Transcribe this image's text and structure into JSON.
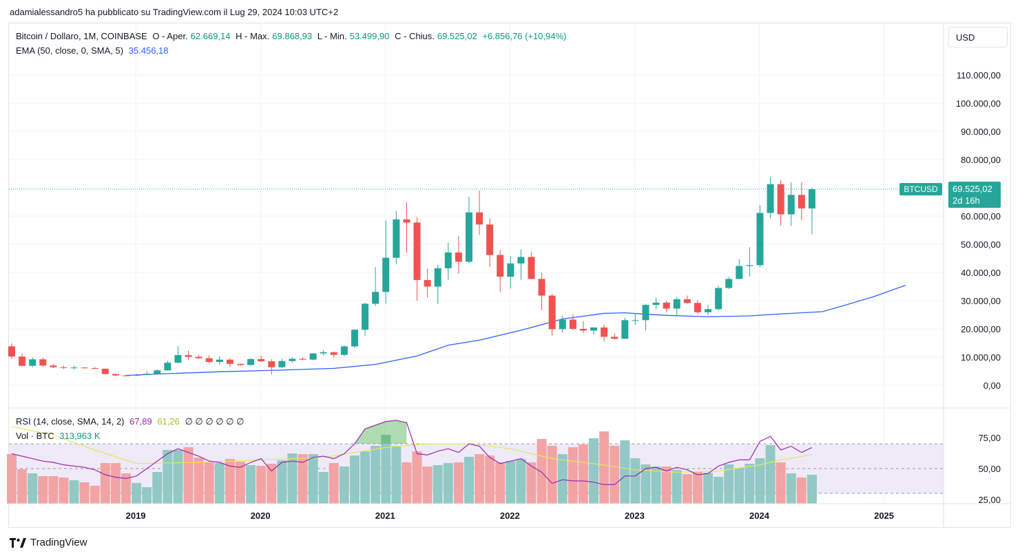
{
  "publish_line": "adamialessandro5 ha pubblicato su TradingView.com il Lug 29, 2024 10:03 UTC+2",
  "legend": {
    "symbol": "Bitcoin / Dollaro, 1M, COINBASE",
    "o_label": "O - Aper.",
    "o_val": "62.669,14",
    "h_label": "H - Max.",
    "h_val": "69.868,93",
    "l_label": "L - Min.",
    "l_val": "53.499,90",
    "c_label": "C - Chius.",
    "c_val": "69.525,02",
    "change": "+6.856,76 (+10,94%)",
    "ema_label": "EMA (50, close, 0, SMA, 5)",
    "ema_val": "35.456,18",
    "rsi_label": "RSI (14, close, SMA, 14, 2)",
    "rsi_val": "67,89",
    "rsi_ma_val": "61,26",
    "rsi_extra": "∅ ∅ ∅ ∅ ∅ ∅",
    "vol_label": "Vol · BTC",
    "vol_val": "313,963 K"
  },
  "currency_button": "USD",
  "price_tag": {
    "symbol": "BTCUSD",
    "value": "69.525,02",
    "countdown": "2d 16h"
  },
  "brand": "TradingView",
  "colors": {
    "up": "#26a69a",
    "down": "#ef5350",
    "ema": "#2962ff",
    "rsi": "#9c27b0",
    "rsi_ma": "#e6e65c",
    "vol_up": "#92c9c4",
    "vol_down": "#f2a4a4",
    "rsi_band": "#efeaf8"
  },
  "chart_data": {
    "type": "candlestick",
    "interval": "1M",
    "x_ticks": [
      "2019",
      "2020",
      "2021",
      "2022",
      "2023",
      "2024",
      "2025"
    ],
    "y_ticks": [
      "0,00",
      "10.000,00",
      "20.000,00",
      "30.000,00",
      "40.000,00",
      "50.000,00",
      "60.000,00",
      "70.000,00",
      "80.000,00",
      "90.000,00",
      "100.000,00",
      "110.000,00"
    ],
    "y_range": [
      -3000,
      118000
    ],
    "first_month": "2018-01",
    "candles": [
      [
        13800,
        14900,
        9400,
        10200
      ],
      [
        10200,
        11300,
        6800,
        6900
      ],
      [
        6900,
        9900,
        6400,
        9200
      ],
      [
        9200,
        9900,
        6500,
        7000
      ],
      [
        7000,
        7700,
        6100,
        6400
      ],
      [
        6400,
        7000,
        5800,
        6200
      ],
      [
        6200,
        7000,
        5700,
        6300
      ],
      [
        6300,
        6400,
        5900,
        6100
      ],
      [
        6100,
        6500,
        5800,
        5900
      ],
      [
        5900,
        5900,
        3900,
        4000
      ],
      [
        4000,
        4200,
        3200,
        3500
      ],
      [
        3500,
        3800,
        3200,
        3400
      ],
      [
        3400,
        4100,
        3300,
        3700
      ],
      [
        3700,
        5100,
        3600,
        4100
      ],
      [
        4100,
        5700,
        4000,
        5300
      ],
      [
        5300,
        8700,
        5200,
        8000
      ],
      [
        8000,
        13900,
        7800,
        10700
      ],
      [
        10700,
        12300,
        9100,
        10100
      ],
      [
        10100,
        10900,
        9300,
        9600
      ],
      [
        9600,
        10600,
        7800,
        8300
      ],
      [
        8300,
        10300,
        7300,
        9100
      ],
      [
        9100,
        9600,
        6500,
        7600
      ],
      [
        7600,
        7700,
        6900,
        7200
      ],
      [
        7200,
        9600,
        6900,
        9300
      ],
      [
        9300,
        10500,
        8300,
        8500
      ],
      [
        8500,
        9200,
        3800,
        6400
      ],
      [
        6400,
        9500,
        6100,
        8600
      ],
      [
        8600,
        9900,
        8100,
        9400
      ],
      [
        9400,
        10000,
        8900,
        9100
      ],
      [
        9100,
        11400,
        8900,
        11300
      ],
      [
        11300,
        12500,
        10600,
        11700
      ],
      [
        11700,
        12000,
        9800,
        10800
      ],
      [
        10800,
        14100,
        10400,
        13800
      ],
      [
        13800,
        19900,
        13200,
        19700
      ],
      [
        19700,
        29300,
        17500,
        28900
      ],
      [
        28900,
        41900,
        28100,
        33100
      ],
      [
        33100,
        58400,
        29000,
        45200
      ],
      [
        45200,
        61800,
        43000,
        58800
      ],
      [
        58800,
        64900,
        47000,
        57700
      ],
      [
        57700,
        59600,
        30000,
        37300
      ],
      [
        37300,
        41300,
        31100,
        35000
      ],
      [
        35000,
        42600,
        28800,
        41500
      ],
      [
        41500,
        50500,
        37300,
        47100
      ],
      [
        47100,
        52900,
        39600,
        43800
      ],
      [
        43800,
        66900,
        43300,
        61300
      ],
      [
        61300,
        69000,
        53300,
        57000
      ],
      [
        57000,
        59200,
        42000,
        46200
      ],
      [
        46200,
        48000,
        33000,
        38500
      ],
      [
        38500,
        45800,
        34300,
        43200
      ],
      [
        43200,
        48200,
        37400,
        45500
      ],
      [
        45500,
        47400,
        37700,
        37700
      ],
      [
        37700,
        40000,
        26700,
        31800
      ],
      [
        31800,
        32400,
        17600,
        19900
      ],
      [
        19900,
        24700,
        18800,
        23300
      ],
      [
        23300,
        25200,
        19500,
        20000
      ],
      [
        20000,
        22700,
        18500,
        19400
      ],
      [
        19400,
        20400,
        18100,
        20500
      ],
      [
        20500,
        21500,
        15500,
        17200
      ],
      [
        17200,
        18400,
        16300,
        16500
      ],
      [
        16500,
        23900,
        16500,
        23100
      ],
      [
        23100,
        25300,
        21400,
        23100
      ],
      [
        23100,
        28900,
        19500,
        28500
      ],
      [
        28500,
        31000,
        26900,
        29300
      ],
      [
        29300,
        30000,
        25800,
        27200
      ],
      [
        27200,
        31400,
        24800,
        30500
      ],
      [
        30500,
        31800,
        28900,
        29200
      ],
      [
        29200,
        30200,
        25400,
        25900
      ],
      [
        25900,
        28600,
        24900,
        27000
      ],
      [
        27000,
        35200,
        26600,
        34500
      ],
      [
        34500,
        38400,
        34100,
        37700
      ],
      [
        37700,
        44700,
        37600,
        42300
      ],
      [
        42300,
        48900,
        38600,
        42600
      ],
      [
        42600,
        63900,
        41900,
        61100
      ],
      [
        61100,
        73800,
        59300,
        71300
      ],
      [
        71300,
        72800,
        56600,
        60600
      ],
      [
        60600,
        71900,
        56500,
        67500
      ],
      [
        67500,
        72000,
        58600,
        62700
      ],
      [
        62700,
        69900,
        53500,
        69500
      ]
    ],
    "ema": [
      [
        11,
        3500
      ],
      [
        14,
        4000
      ],
      [
        20,
        4800
      ],
      [
        26,
        5400
      ],
      [
        31,
        6000
      ],
      [
        35,
        7400
      ],
      [
        39,
        10400
      ],
      [
        42,
        14200
      ],
      [
        45,
        16000
      ],
      [
        49,
        19500
      ],
      [
        53,
        23500
      ],
      [
        57,
        25500
      ],
      [
        59,
        25700
      ],
      [
        61,
        25200
      ],
      [
        63,
        24800
      ],
      [
        67,
        24300
      ],
      [
        71,
        24600
      ],
      [
        74,
        25300
      ],
      [
        78,
        26100
      ],
      [
        80,
        28200
      ],
      [
        83,
        31500
      ],
      [
        86,
        35456
      ]
    ],
    "rsi": [
      [
        0,
        62
      ],
      [
        1,
        60
      ],
      [
        2,
        58
      ],
      [
        3,
        56
      ],
      [
        4,
        55
      ],
      [
        5,
        53
      ],
      [
        6,
        52
      ],
      [
        7,
        51
      ],
      [
        8,
        49
      ],
      [
        9,
        45
      ],
      [
        10,
        43
      ],
      [
        11,
        42
      ],
      [
        12,
        44
      ],
      [
        13,
        50
      ],
      [
        14,
        56
      ],
      [
        15,
        62
      ],
      [
        16,
        66
      ],
      [
        17,
        63
      ],
      [
        18,
        60
      ],
      [
        19,
        56
      ],
      [
        20,
        55
      ],
      [
        21,
        52
      ],
      [
        22,
        51
      ],
      [
        23,
        55
      ],
      [
        24,
        58
      ],
      [
        25,
        48
      ],
      [
        26,
        55
      ],
      [
        27,
        56
      ],
      [
        28,
        55
      ],
      [
        29,
        59
      ],
      [
        30,
        60
      ],
      [
        31,
        58
      ],
      [
        32,
        62
      ],
      [
        33,
        70
      ],
      [
        34,
        82
      ],
      [
        35,
        85
      ],
      [
        36,
        88
      ],
      [
        37,
        89
      ],
      [
        38,
        87
      ],
      [
        39,
        62
      ],
      [
        40,
        61
      ],
      [
        41,
        64
      ],
      [
        42,
        66
      ],
      [
        43,
        63
      ],
      [
        44,
        70
      ],
      [
        45,
        68
      ],
      [
        46,
        59
      ],
      [
        47,
        54
      ],
      [
        48,
        56
      ],
      [
        49,
        58
      ],
      [
        50,
        52
      ],
      [
        51,
        47
      ],
      [
        52,
        38
      ],
      [
        53,
        41
      ],
      [
        54,
        40
      ],
      [
        55,
        40
      ],
      [
        56,
        39
      ],
      [
        57,
        37
      ],
      [
        58,
        37
      ],
      [
        59,
        44
      ],
      [
        60,
        44
      ],
      [
        61,
        50
      ],
      [
        62,
        51
      ],
      [
        63,
        48
      ],
      [
        64,
        51
      ],
      [
        65,
        49
      ],
      [
        66,
        45
      ],
      [
        67,
        46
      ],
      [
        68,
        52
      ],
      [
        69,
        55
      ],
      [
        70,
        57
      ],
      [
        71,
        57
      ],
      [
        72,
        72
      ],
      [
        73,
        76
      ],
      [
        74,
        65
      ],
      [
        75,
        68
      ],
      [
        76,
        63
      ],
      [
        77,
        67
      ]
    ],
    "rsi_ma": [
      [
        0,
        84
      ],
      [
        4,
        77
      ],
      [
        8,
        65
      ],
      [
        12,
        54
      ],
      [
        18,
        55
      ],
      [
        24,
        57
      ],
      [
        30,
        59
      ],
      [
        36,
        67
      ],
      [
        40,
        70
      ],
      [
        44,
        70
      ],
      [
        48,
        66
      ],
      [
        52,
        58
      ],
      [
        56,
        54
      ],
      [
        60,
        49
      ],
      [
        64,
        47
      ],
      [
        68,
        48
      ],
      [
        72,
        53
      ],
      [
        74,
        57
      ],
      [
        77,
        61.3
      ]
    ],
    "rsi_axis": {
      "ticks": [
        "25,00",
        "50,00",
        "75,00"
      ],
      "upper_band": 70,
      "lower_band": 30
    },
    "volume_heights": [
      0.72,
      0.5,
      0.44,
      0.4,
      0.4,
      0.38,
      0.34,
      0.31,
      0.26,
      0.59,
      0.59,
      0.44,
      0.3,
      0.24,
      0.46,
      0.78,
      0.78,
      0.82,
      0.67,
      0.6,
      0.59,
      0.65,
      0.61,
      0.56,
      0.55,
      0.58,
      0.63,
      0.73,
      0.72,
      0.72,
      0.46,
      0.59,
      0.54,
      0.7,
      0.76,
      0.84,
      1.0,
      0.84,
      0.6,
      0.76,
      0.54,
      0.56,
      0.59,
      0.6,
      0.68,
      0.72,
      0.7,
      0.6,
      0.62,
      0.65,
      0.6,
      0.94,
      0.84,
      0.72,
      0.82,
      0.86,
      0.95,
      1.05,
      0.84,
      0.92,
      0.66,
      0.57,
      0.54,
      0.54,
      0.49,
      0.43,
      0.46,
      0.45,
      0.39,
      0.57,
      0.52,
      0.58,
      0.66,
      0.85,
      0.6,
      0.44,
      0.38,
      0.42
    ]
  }
}
